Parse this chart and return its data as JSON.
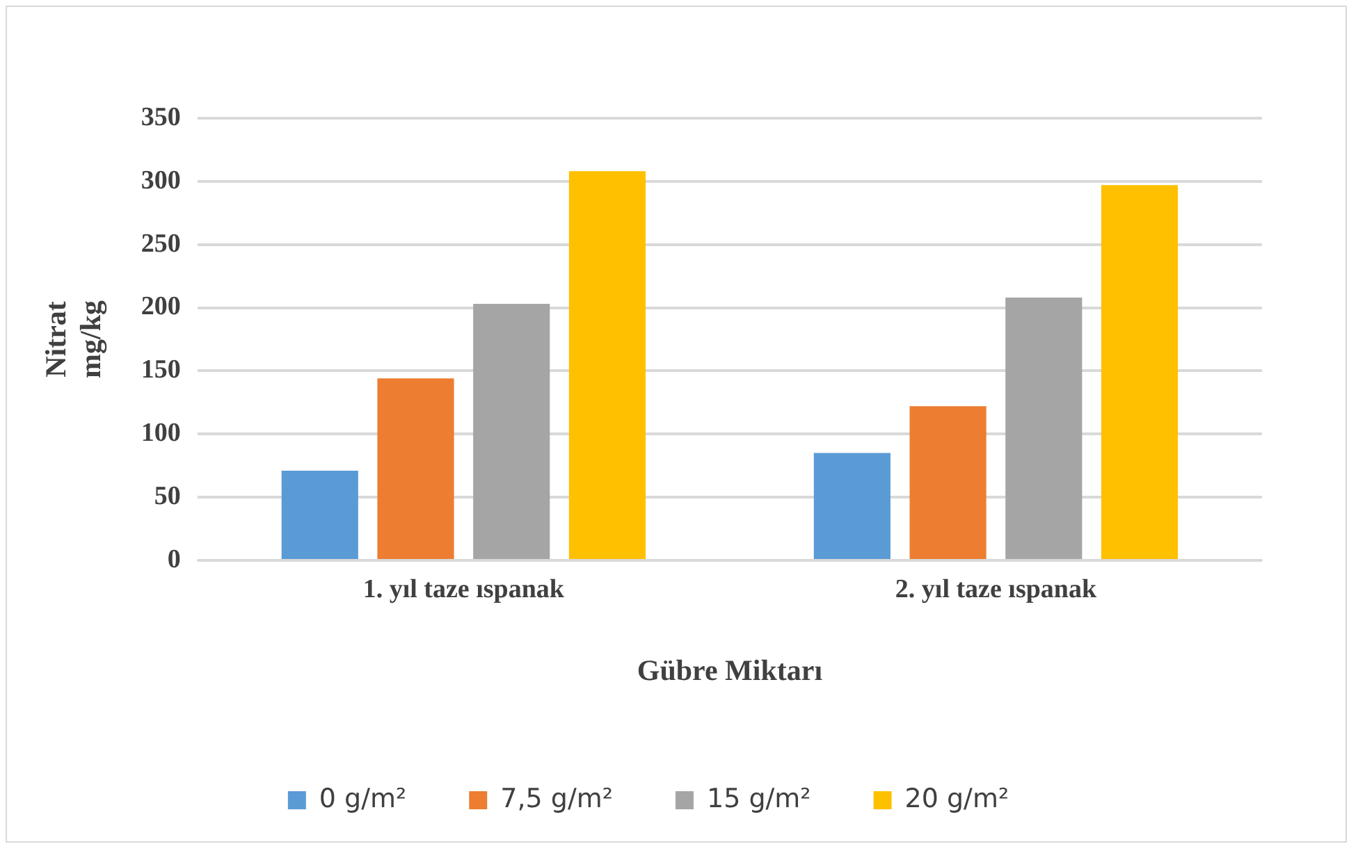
{
  "chart_data": {
    "type": "bar",
    "xlabel": "Gübre Miktarı",
    "ylabel": "Nitrat mg/kg",
    "categories": [
      "1. yıl taze ıspanak",
      "2. yıl taze ıspanak"
    ],
    "series": [
      {
        "name": "0 g/m²",
        "color": "#5b9bd5",
        "values": [
          71,
          85
        ]
      },
      {
        "name": "7,5 g/m²",
        "color": "#ed7d31",
        "values": [
          144,
          122
        ]
      },
      {
        "name": "15 g/m²",
        "color": "#a5a5a5",
        "values": [
          203,
          208
        ]
      },
      {
        "name": "20 g/m²",
        "color": "#ffc000",
        "values": [
          308,
          297
        ]
      }
    ],
    "ylim": [
      0,
      350
    ],
    "yticks": [
      0,
      50,
      100,
      150,
      200,
      250,
      300,
      350
    ],
    "grid": "y",
    "legend": "bottom"
  }
}
